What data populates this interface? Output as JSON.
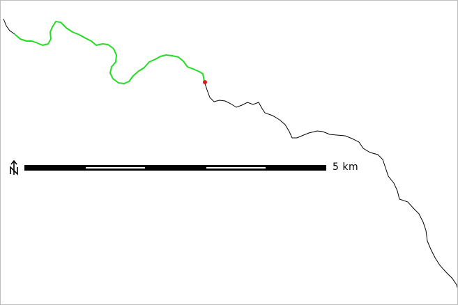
{
  "map": {
    "colors": {
      "background": "#ffffff",
      "border": "#bdbdbd",
      "route_full": "#000000",
      "route_highlight": "#22dd22",
      "current_position": "#e8161b"
    },
    "scale_bar": {
      "label": "5 km",
      "segments": 5
    },
    "north_arrow": {
      "icon": "north-arrow-icon"
    },
    "marker": {
      "icon": "position-dot-icon"
    }
  }
}
